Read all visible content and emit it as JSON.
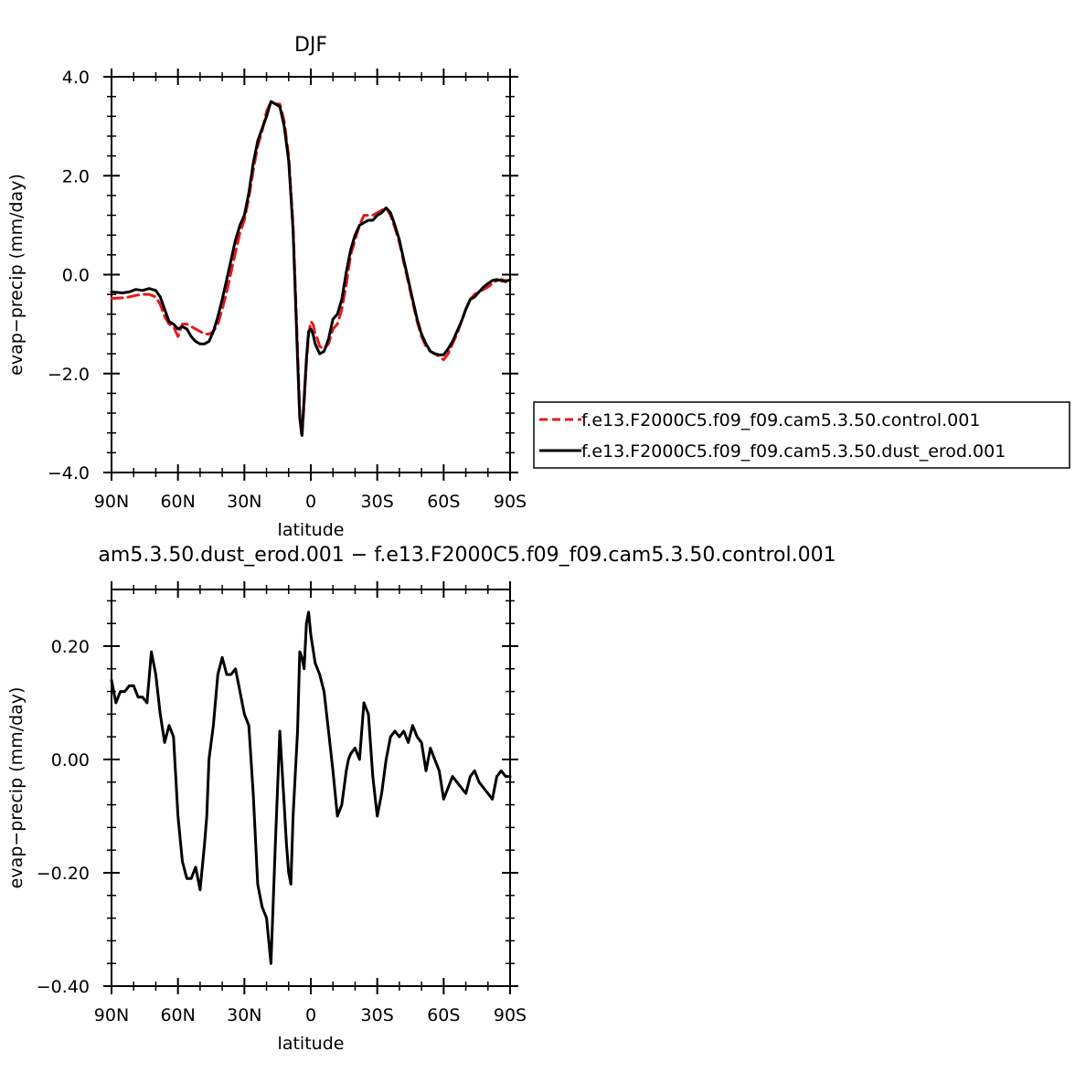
{
  "chart_data": [
    {
      "type": "line",
      "title": "DJF",
      "xlabel": "latitude",
      "ylabel": "evap−precip (mm/day)",
      "xlim": [
        -90,
        90
      ],
      "ylim": [
        -4.0,
        4.0
      ],
      "xticks": [
        {
          "value": -90,
          "label": "90N"
        },
        {
          "value": -60,
          "label": "60N"
        },
        {
          "value": -30,
          "label": "30N"
        },
        {
          "value": 0,
          "label": "0"
        },
        {
          "value": 30,
          "label": "30S"
        },
        {
          "value": 60,
          "label": "60S"
        },
        {
          "value": 90,
          "label": "90S"
        }
      ],
      "yticks": [
        {
          "value": -4.0,
          "label": "−4.0"
        },
        {
          "value": -2.0,
          "label": "−2.0"
        },
        {
          "value": 0.0,
          "label": "0.0"
        },
        {
          "value": 2.0,
          "label": "2.0"
        },
        {
          "value": 4.0,
          "label": "4.0"
        }
      ],
      "legend": "right",
      "series": [
        {
          "name": "f.e13.F2000C5.f09_f09.cam5.3.50.control.001",
          "color": "#e41a1c",
          "dash": "dashed",
          "x": [
            -90,
            -85,
            -82,
            -79,
            -76,
            -73,
            -70,
            -68,
            -66,
            -64,
            -62,
            -60,
            -58,
            -56,
            -54,
            -52,
            -50,
            -48,
            -46,
            -44,
            -42,
            -40,
            -38,
            -36,
            -34,
            -32,
            -30,
            -28,
            -26,
            -24,
            -22,
            -20,
            -18,
            -16,
            -14,
            -12,
            -10,
            -8,
            -6,
            -5,
            -4,
            -3,
            -2,
            -1,
            0,
            1,
            2,
            3,
            4,
            6,
            8,
            10,
            12,
            14,
            16,
            18,
            20,
            22,
            24,
            26,
            28,
            30,
            32,
            34,
            36,
            38,
            40,
            42,
            44,
            46,
            48,
            50,
            52,
            54,
            56,
            58,
            60,
            62,
            64,
            66,
            68,
            70,
            72,
            74,
            76,
            78,
            80,
            82,
            84,
            86,
            88,
            90
          ],
          "values": [
            -0.48,
            -0.47,
            -0.45,
            -0.42,
            -0.4,
            -0.4,
            -0.45,
            -0.6,
            -0.85,
            -1.0,
            -1.05,
            -1.25,
            -1.0,
            -1.0,
            -1.05,
            -1.1,
            -1.15,
            -1.2,
            -1.2,
            -1.15,
            -1.0,
            -0.7,
            -0.35,
            0.05,
            0.45,
            0.85,
            1.1,
            1.55,
            2.1,
            2.6,
            2.9,
            3.3,
            3.5,
            3.45,
            3.45,
            3.1,
            2.4,
            1.0,
            -1.5,
            -2.8,
            -3.3,
            -2.6,
            -1.8,
            -1.2,
            -0.95,
            -1.0,
            -1.2,
            -1.3,
            -1.45,
            -1.5,
            -1.4,
            -1.1,
            -1.0,
            -0.7,
            -0.2,
            0.4,
            0.7,
            1.0,
            1.2,
            1.2,
            1.2,
            1.25,
            1.3,
            1.35,
            1.2,
            0.95,
            0.65,
            0.25,
            -0.15,
            -0.55,
            -0.95,
            -1.25,
            -1.45,
            -1.55,
            -1.6,
            -1.65,
            -1.72,
            -1.6,
            -1.4,
            -1.2,
            -0.95,
            -0.7,
            -0.5,
            -0.4,
            -0.35,
            -0.3,
            -0.25,
            -0.18,
            -0.12,
            -0.1,
            -0.12,
            -0.1
          ]
        },
        {
          "name": "f.e13.F2000C5.f09_f09.cam5.3.50.dust_erod.001",
          "color": "#000000",
          "dash": "solid",
          "x": [
            -90,
            -85,
            -82,
            -79,
            -76,
            -73,
            -70,
            -68,
            -66,
            -64,
            -62,
            -60,
            -58,
            -56,
            -54,
            -52,
            -50,
            -48,
            -46,
            -44,
            -42,
            -40,
            -38,
            -36,
            -34,
            -32,
            -30,
            -28,
            -26,
            -24,
            -22,
            -20,
            -18,
            -16,
            -14,
            -12,
            -10,
            -8,
            -6,
            -5,
            -4,
            -3,
            -2,
            -1,
            0,
            1,
            2,
            3,
            4,
            6,
            8,
            10,
            12,
            14,
            16,
            18,
            20,
            22,
            24,
            26,
            28,
            30,
            32,
            34,
            36,
            38,
            40,
            42,
            44,
            46,
            48,
            50,
            52,
            54,
            56,
            58,
            60,
            62,
            64,
            66,
            68,
            70,
            72,
            74,
            76,
            78,
            80,
            82,
            84,
            86,
            88,
            90
          ],
          "values": [
            -0.35,
            -0.37,
            -0.35,
            -0.3,
            -0.32,
            -0.28,
            -0.32,
            -0.45,
            -0.7,
            -0.95,
            -1.0,
            -1.1,
            -1.05,
            -1.1,
            -1.25,
            -1.35,
            -1.4,
            -1.4,
            -1.35,
            -1.15,
            -0.85,
            -0.5,
            -0.1,
            0.3,
            0.7,
            1.0,
            1.2,
            1.65,
            2.25,
            2.7,
            2.95,
            3.2,
            3.5,
            3.45,
            3.4,
            3.0,
            2.3,
            0.9,
            -1.7,
            -2.9,
            -3.25,
            -2.5,
            -1.7,
            -1.15,
            -1.1,
            -1.2,
            -1.4,
            -1.5,
            -1.6,
            -1.55,
            -1.3,
            -0.9,
            -0.8,
            -0.5,
            0.05,
            0.5,
            0.8,
            1.0,
            1.05,
            1.1,
            1.1,
            1.2,
            1.25,
            1.35,
            1.25,
            1.0,
            0.7,
            0.3,
            -0.1,
            -0.5,
            -0.9,
            -1.2,
            -1.4,
            -1.55,
            -1.6,
            -1.62,
            -1.62,
            -1.5,
            -1.35,
            -1.15,
            -0.95,
            -0.7,
            -0.5,
            -0.45,
            -0.35,
            -0.25,
            -0.18,
            -0.12,
            -0.1,
            -0.12,
            -0.14,
            -0.1
          ]
        }
      ]
    },
    {
      "type": "line",
      "title": "am5.3.50.dust_erod.001 − f.e13.F2000C5.f09_f09.cam5.3.50.control.001",
      "xlabel": "latitude",
      "ylabel": "evap−precip (mm/day)",
      "xlim": [
        -90,
        90
      ],
      "ylim": [
        -0.4,
        0.3
      ],
      "xticks": [
        {
          "value": -90,
          "label": "90N"
        },
        {
          "value": -60,
          "label": "60N"
        },
        {
          "value": -30,
          "label": "30N"
        },
        {
          "value": 0,
          "label": "0"
        },
        {
          "value": 30,
          "label": "30S"
        },
        {
          "value": 60,
          "label": "60S"
        },
        {
          "value": 90,
          "label": "90S"
        }
      ],
      "yticks": [
        {
          "value": -0.4,
          "label": "−0.40"
        },
        {
          "value": -0.2,
          "label": "−0.20"
        },
        {
          "value": 0.0,
          "label": "0.00"
        },
        {
          "value": 0.2,
          "label": "0.20"
        }
      ],
      "series": [
        {
          "name": "",
          "color": "#000000",
          "dash": "solid",
          "x": [
            -90,
            -88,
            -86,
            -84,
            -82,
            -80,
            -78,
            -76,
            -74,
            -72,
            -70,
            -68,
            -66,
            -64,
            -62,
            -60,
            -58,
            -56,
            -54,
            -52,
            -50,
            -48,
            -47,
            -46,
            -44,
            -42,
            -40,
            -38,
            -36,
            -34,
            -32,
            -30,
            -28,
            -26,
            -24,
            -22,
            -20,
            -18,
            -16,
            -14,
            -12,
            -11,
            -10,
            -9,
            -8,
            -6,
            -5,
            -4,
            -3,
            -2,
            -1,
            0,
            2,
            4,
            6,
            8,
            10,
            12,
            14,
            16,
            17,
            18,
            20,
            22,
            24,
            26,
            28,
            30,
            32,
            34,
            36,
            38,
            40,
            42,
            44,
            46,
            48,
            50,
            52,
            54,
            56,
            58,
            60,
            62,
            64,
            66,
            68,
            70,
            72,
            74,
            76,
            78,
            80,
            82,
            84,
            86,
            88,
            90
          ],
          "values": [
            0.14,
            0.1,
            0.12,
            0.12,
            0.13,
            0.13,
            0.11,
            0.11,
            0.1,
            0.19,
            0.15,
            0.08,
            0.03,
            0.06,
            0.04,
            -0.1,
            -0.18,
            -0.21,
            -0.21,
            -0.19,
            -0.23,
            -0.15,
            -0.1,
            0.0,
            0.06,
            0.15,
            0.18,
            0.15,
            0.15,
            0.16,
            0.12,
            0.08,
            0.06,
            -0.06,
            -0.22,
            -0.26,
            -0.28,
            -0.36,
            -0.15,
            0.05,
            -0.08,
            -0.15,
            -0.2,
            -0.22,
            -0.1,
            0.05,
            0.19,
            0.18,
            0.16,
            0.24,
            0.26,
            0.22,
            0.17,
            0.15,
            0.12,
            0.05,
            -0.02,
            -0.1,
            -0.08,
            -0.02,
            0.0,
            0.01,
            0.02,
            0.0,
            0.1,
            0.08,
            -0.03,
            -0.1,
            -0.06,
            0.0,
            0.04,
            0.05,
            0.04,
            0.05,
            0.03,
            0.06,
            0.04,
            0.03,
            -0.02,
            0.02,
            0.0,
            -0.02,
            -0.07,
            -0.05,
            -0.03,
            -0.04,
            -0.05,
            -0.06,
            -0.03,
            -0.02,
            -0.04,
            -0.05,
            -0.06,
            -0.07,
            -0.03,
            -0.02,
            -0.03,
            -0.03
          ]
        }
      ]
    }
  ]
}
